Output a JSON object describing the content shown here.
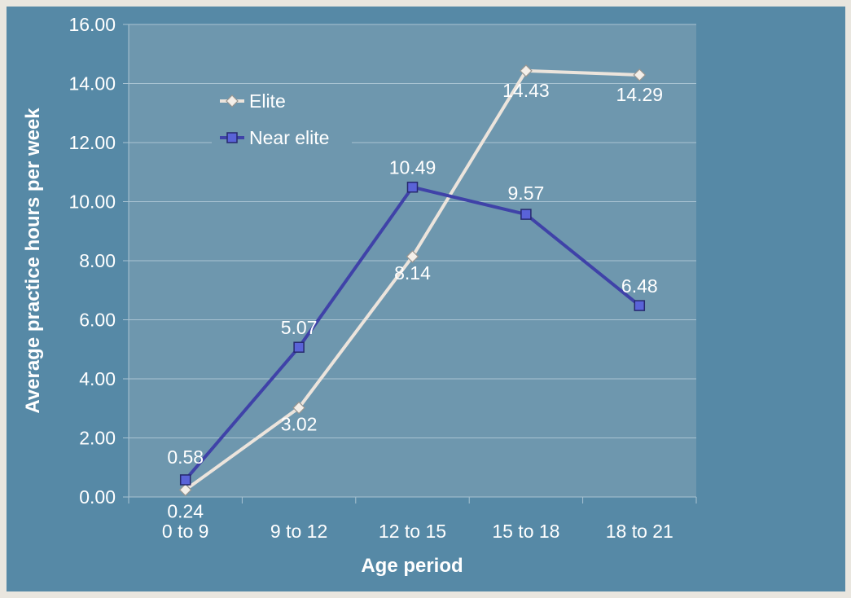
{
  "chart_data": {
    "type": "line",
    "categories": [
      "0 to 9",
      "9 to 12",
      "12 to 15",
      "15 to 18",
      "18 to 21"
    ],
    "series": [
      {
        "name": "Elite",
        "values": [
          0.24,
          3.02,
          8.14,
          14.43,
          14.29
        ],
        "labels": [
          "0.24",
          "3.02",
          "8.14",
          "14.43",
          "14.29"
        ],
        "color": "#ece4dc",
        "marker": "diamond"
      },
      {
        "name": "Near elite",
        "values": [
          0.58,
          5.07,
          10.49,
          9.57,
          6.48
        ],
        "labels": [
          "0.58",
          "5.07",
          "10.49",
          "9.57",
          "6.48"
        ],
        "color": "#3f42a8",
        "marker": "square"
      }
    ],
    "xlabel": "Age period",
    "ylabel": "Average practice hours per week",
    "ylim": [
      0,
      16
    ],
    "yticks": [
      "0.00",
      "2.00",
      "4.00",
      "6.00",
      "8.00",
      "10.00",
      "12.00",
      "14.00",
      "16.00"
    ],
    "grid": true,
    "legend": "top-left",
    "colors": {
      "background": "#5689a6",
      "plot_area": "#6e97ae",
      "gridline": "#a9c3d2"
    }
  }
}
